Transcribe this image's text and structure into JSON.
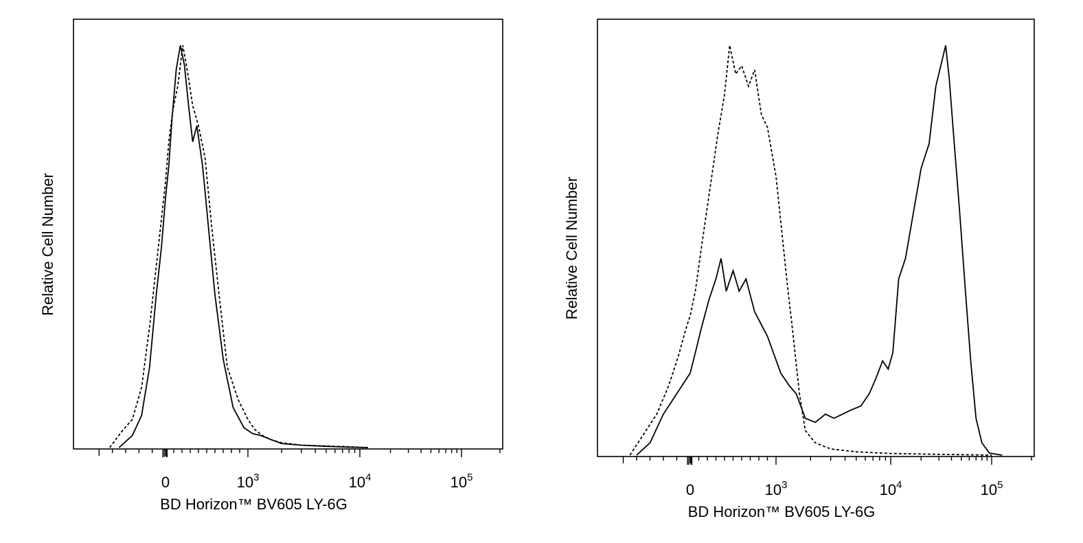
{
  "chart_data": [
    {
      "type": "line",
      "panel": "left",
      "xlabel": "BD Horizon™ BV605 LY-6G",
      "ylabel": "Relative Cell Number",
      "x_scale": "biexponential",
      "xlim": [
        -600,
        200000
      ],
      "ylim": [
        0,
        1
      ],
      "x_ticks": [
        {
          "value": 0,
          "base": "0",
          "exp": ""
        },
        {
          "value": 1000,
          "base": "10",
          "exp": "3"
        },
        {
          "value": 10000,
          "base": "10",
          "exp": "4"
        },
        {
          "value": 100000,
          "base": "10",
          "exp": "5"
        }
      ],
      "grid": false,
      "series": [
        {
          "style": "solid",
          "x": [
            -350,
            -250,
            -180,
            -120,
            -70,
            -30,
            0,
            40,
            80,
            130,
            180,
            230,
            280,
            330,
            380,
            450,
            520,
            600,
            700,
            820,
            950,
            1100,
            1300,
            1600,
            2000,
            3000,
            5000,
            8000,
            12000
          ],
          "y": [
            0.0,
            0.03,
            0.08,
            0.2,
            0.38,
            0.5,
            0.62,
            0.7,
            0.82,
            0.94,
            1.0,
            0.95,
            0.85,
            0.76,
            0.8,
            0.7,
            0.55,
            0.38,
            0.22,
            0.1,
            0.05,
            0.035,
            0.03,
            0.02,
            0.01,
            0.006,
            0.003,
            0.001,
            0.0
          ]
        },
        {
          "style": "dashed",
          "x": [
            -420,
            -330,
            -250,
            -180,
            -120,
            -70,
            -30,
            0,
            40,
            90,
            150,
            210,
            270,
            330,
            400,
            480,
            560,
            650,
            750,
            880,
            1000,
            1150,
            1350,
            1600,
            2000,
            3000,
            5000,
            8000,
            12000
          ],
          "y": [
            0.0,
            0.04,
            0.07,
            0.15,
            0.3,
            0.45,
            0.57,
            0.66,
            0.76,
            0.84,
            0.9,
            1.0,
            0.93,
            0.85,
            0.8,
            0.72,
            0.55,
            0.38,
            0.2,
            0.12,
            0.07,
            0.045,
            0.03,
            0.02,
            0.012,
            0.006,
            0.004,
            0.002,
            0.0
          ]
        }
      ]
    },
    {
      "type": "line",
      "panel": "right",
      "xlabel": "BD Horizon™ BV605 LY-6G",
      "ylabel": "Relative Cell Number",
      "x_scale": "biexponential",
      "xlim": [
        -600,
        200000
      ],
      "ylim": [
        0,
        1
      ],
      "x_ticks": [
        {
          "value": 0,
          "base": "0",
          "exp": ""
        },
        {
          "value": 1000,
          "base": "10",
          "exp": "3"
        },
        {
          "value": 10000,
          "base": "10",
          "exp": "4"
        },
        {
          "value": 100000,
          "base": "10",
          "exp": "5"
        }
      ],
      "grid": false,
      "series": [
        {
          "style": "solid",
          "x": [
            -400,
            -300,
            -200,
            -120,
            -60,
            0,
            60,
            130,
            220,
            300,
            360,
            420,
            500,
            570,
            650,
            750,
            900,
            1100,
            1300,
            1500,
            1800,
            2200,
            2700,
            3200,
            3800,
            4500,
            5500,
            6500,
            7500,
            8500,
            9500,
            10500,
            12000,
            14000,
            17000,
            20000,
            24000,
            28000,
            32000,
            35000,
            38000,
            42000,
            48000,
            55000,
            62000,
            70000,
            80000,
            95000,
            120000
          ],
          "y": [
            0.0,
            0.03,
            0.1,
            0.14,
            0.17,
            0.2,
            0.25,
            0.31,
            0.38,
            0.43,
            0.48,
            0.4,
            0.45,
            0.4,
            0.43,
            0.35,
            0.29,
            0.2,
            0.17,
            0.15,
            0.09,
            0.08,
            0.1,
            0.09,
            0.1,
            0.11,
            0.12,
            0.15,
            0.19,
            0.23,
            0.21,
            0.25,
            0.43,
            0.48,
            0.6,
            0.7,
            0.76,
            0.9,
            0.96,
            1.0,
            0.92,
            0.78,
            0.6,
            0.4,
            0.23,
            0.09,
            0.03,
            0.005,
            0.0
          ]
        },
        {
          "style": "dashed",
          "x": [
            -450,
            -350,
            -250,
            -160,
            -90,
            -30,
            0,
            60,
            140,
            230,
            320,
            400,
            460,
            530,
            600,
            680,
            750,
            830,
            900,
            1000,
            1100,
            1250,
            1400,
            1600,
            1800,
            2200,
            3000,
            5000,
            10000,
            30000,
            100000
          ],
          "y": [
            0.0,
            0.05,
            0.1,
            0.17,
            0.24,
            0.31,
            0.34,
            0.4,
            0.52,
            0.65,
            0.78,
            0.88,
            1.0,
            0.93,
            0.95,
            0.9,
            0.94,
            0.83,
            0.8,
            0.68,
            0.57,
            0.42,
            0.3,
            0.15,
            0.06,
            0.03,
            0.015,
            0.008,
            0.004,
            0.002,
            0.0
          ]
        }
      ]
    }
  ]
}
